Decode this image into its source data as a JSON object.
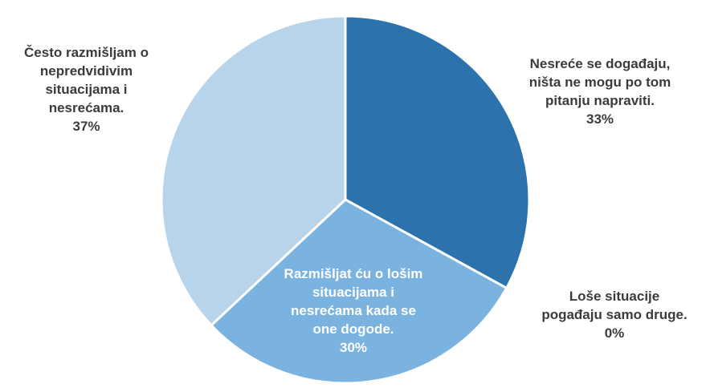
{
  "chart_data": {
    "type": "pie",
    "slices": [
      {
        "label_lines": [
          "Nesreće se događaju,",
          "ništa ne mogu po tom",
          "pitanju napraviti."
        ],
        "percent_label": "33%",
        "value": 33,
        "color": "#2c72ad"
      },
      {
        "label_lines": [
          "Loše situacije",
          "pogađaju samo druge."
        ],
        "percent_label": "0%",
        "value": 0,
        "color": "#4a8fc8"
      },
      {
        "label_lines": [
          "Razmišljat ću o lošim",
          "situacijama i",
          "nesrećama kada se",
          "one dogode."
        ],
        "percent_label": "30%",
        "value": 30,
        "color": "#7bb3e0"
      },
      {
        "label_lines": [
          "Često razmišljam o",
          "nepredvidivim",
          "situacijama i",
          "nesrećama."
        ],
        "percent_label": "37%",
        "value": 37,
        "color": "#b7d4ea"
      }
    ],
    "start_angle_deg": 0,
    "direction": "clockwise"
  }
}
